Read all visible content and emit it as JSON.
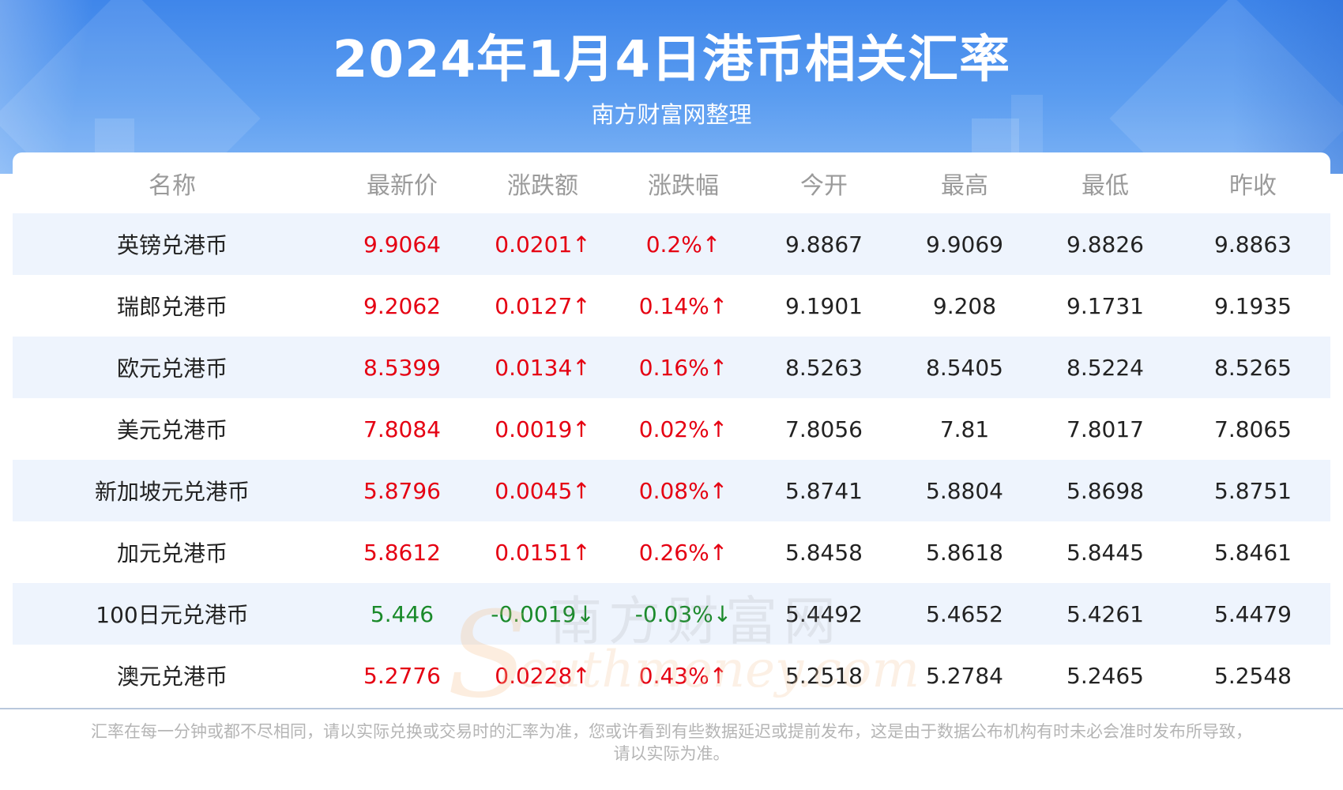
{
  "header": {
    "title": "2024年1月4日港币相关汇率",
    "subtitle": "南方财富网整理"
  },
  "table": {
    "columns": [
      "名称",
      "最新价",
      "涨跌额",
      "涨跌幅",
      "今开",
      "最高",
      "最低",
      "昨收"
    ],
    "rows": [
      {
        "name": "英镑兑港币",
        "latest": "9.9064",
        "change": "0.0201↑",
        "change_pct": "0.2%↑",
        "open": "9.8867",
        "high": "9.9069",
        "low": "9.8826",
        "prev_close": "9.8863",
        "direction": "up"
      },
      {
        "name": "瑞郎兑港币",
        "latest": "9.2062",
        "change": "0.0127↑",
        "change_pct": "0.14%↑",
        "open": "9.1901",
        "high": "9.208",
        "low": "9.1731",
        "prev_close": "9.1935",
        "direction": "up"
      },
      {
        "name": "欧元兑港币",
        "latest": "8.5399",
        "change": "0.0134↑",
        "change_pct": "0.16%↑",
        "open": "8.5263",
        "high": "8.5405",
        "low": "8.5224",
        "prev_close": "8.5265",
        "direction": "up"
      },
      {
        "name": "美元兑港币",
        "latest": "7.8084",
        "change": "0.0019↑",
        "change_pct": "0.02%↑",
        "open": "7.8056",
        "high": "7.81",
        "low": "7.8017",
        "prev_close": "7.8065",
        "direction": "up"
      },
      {
        "name": "新加坡元兑港币",
        "latest": "5.8796",
        "change": "0.0045↑",
        "change_pct": "0.08%↑",
        "open": "5.8741",
        "high": "5.8804",
        "low": "5.8698",
        "prev_close": "5.8751",
        "direction": "up"
      },
      {
        "name": "加元兑港币",
        "latest": "5.8612",
        "change": "0.0151↑",
        "change_pct": "0.26%↑",
        "open": "5.8458",
        "high": "5.8618",
        "low": "5.8445",
        "prev_close": "5.8461",
        "direction": "up"
      },
      {
        "name": "100日元兑港币",
        "latest": "5.446",
        "change": "-0.0019↓",
        "change_pct": "-0.03%↓",
        "open": "5.4492",
        "high": "5.4652",
        "low": "5.4261",
        "prev_close": "5.4479",
        "direction": "down"
      },
      {
        "name": "澳元兑港币",
        "latest": "5.2776",
        "change": "0.0228↑",
        "change_pct": "0.43%↑",
        "open": "5.2518",
        "high": "5.2784",
        "low": "5.2465",
        "prev_close": "5.2548",
        "direction": "up"
      }
    ]
  },
  "footnote": {
    "line1": "汇率在每一分钟或都不尽相同，请以实际兑换或交易时的汇率为准，您或许看到有些数据延迟或提前发布，这是由于数据公布机构有时未必会准时发布所导致，",
    "line2": "请以实际为准。"
  },
  "watermark": {
    "cn": "南方财富网",
    "en": "outhmoney.com",
    "s": "S"
  },
  "colors": {
    "header_blue": "#3f86ea",
    "row_alt": "#eef4fd",
    "up": "#e50012",
    "down": "#1a8a2a",
    "header_text": "#9a9a9a"
  }
}
